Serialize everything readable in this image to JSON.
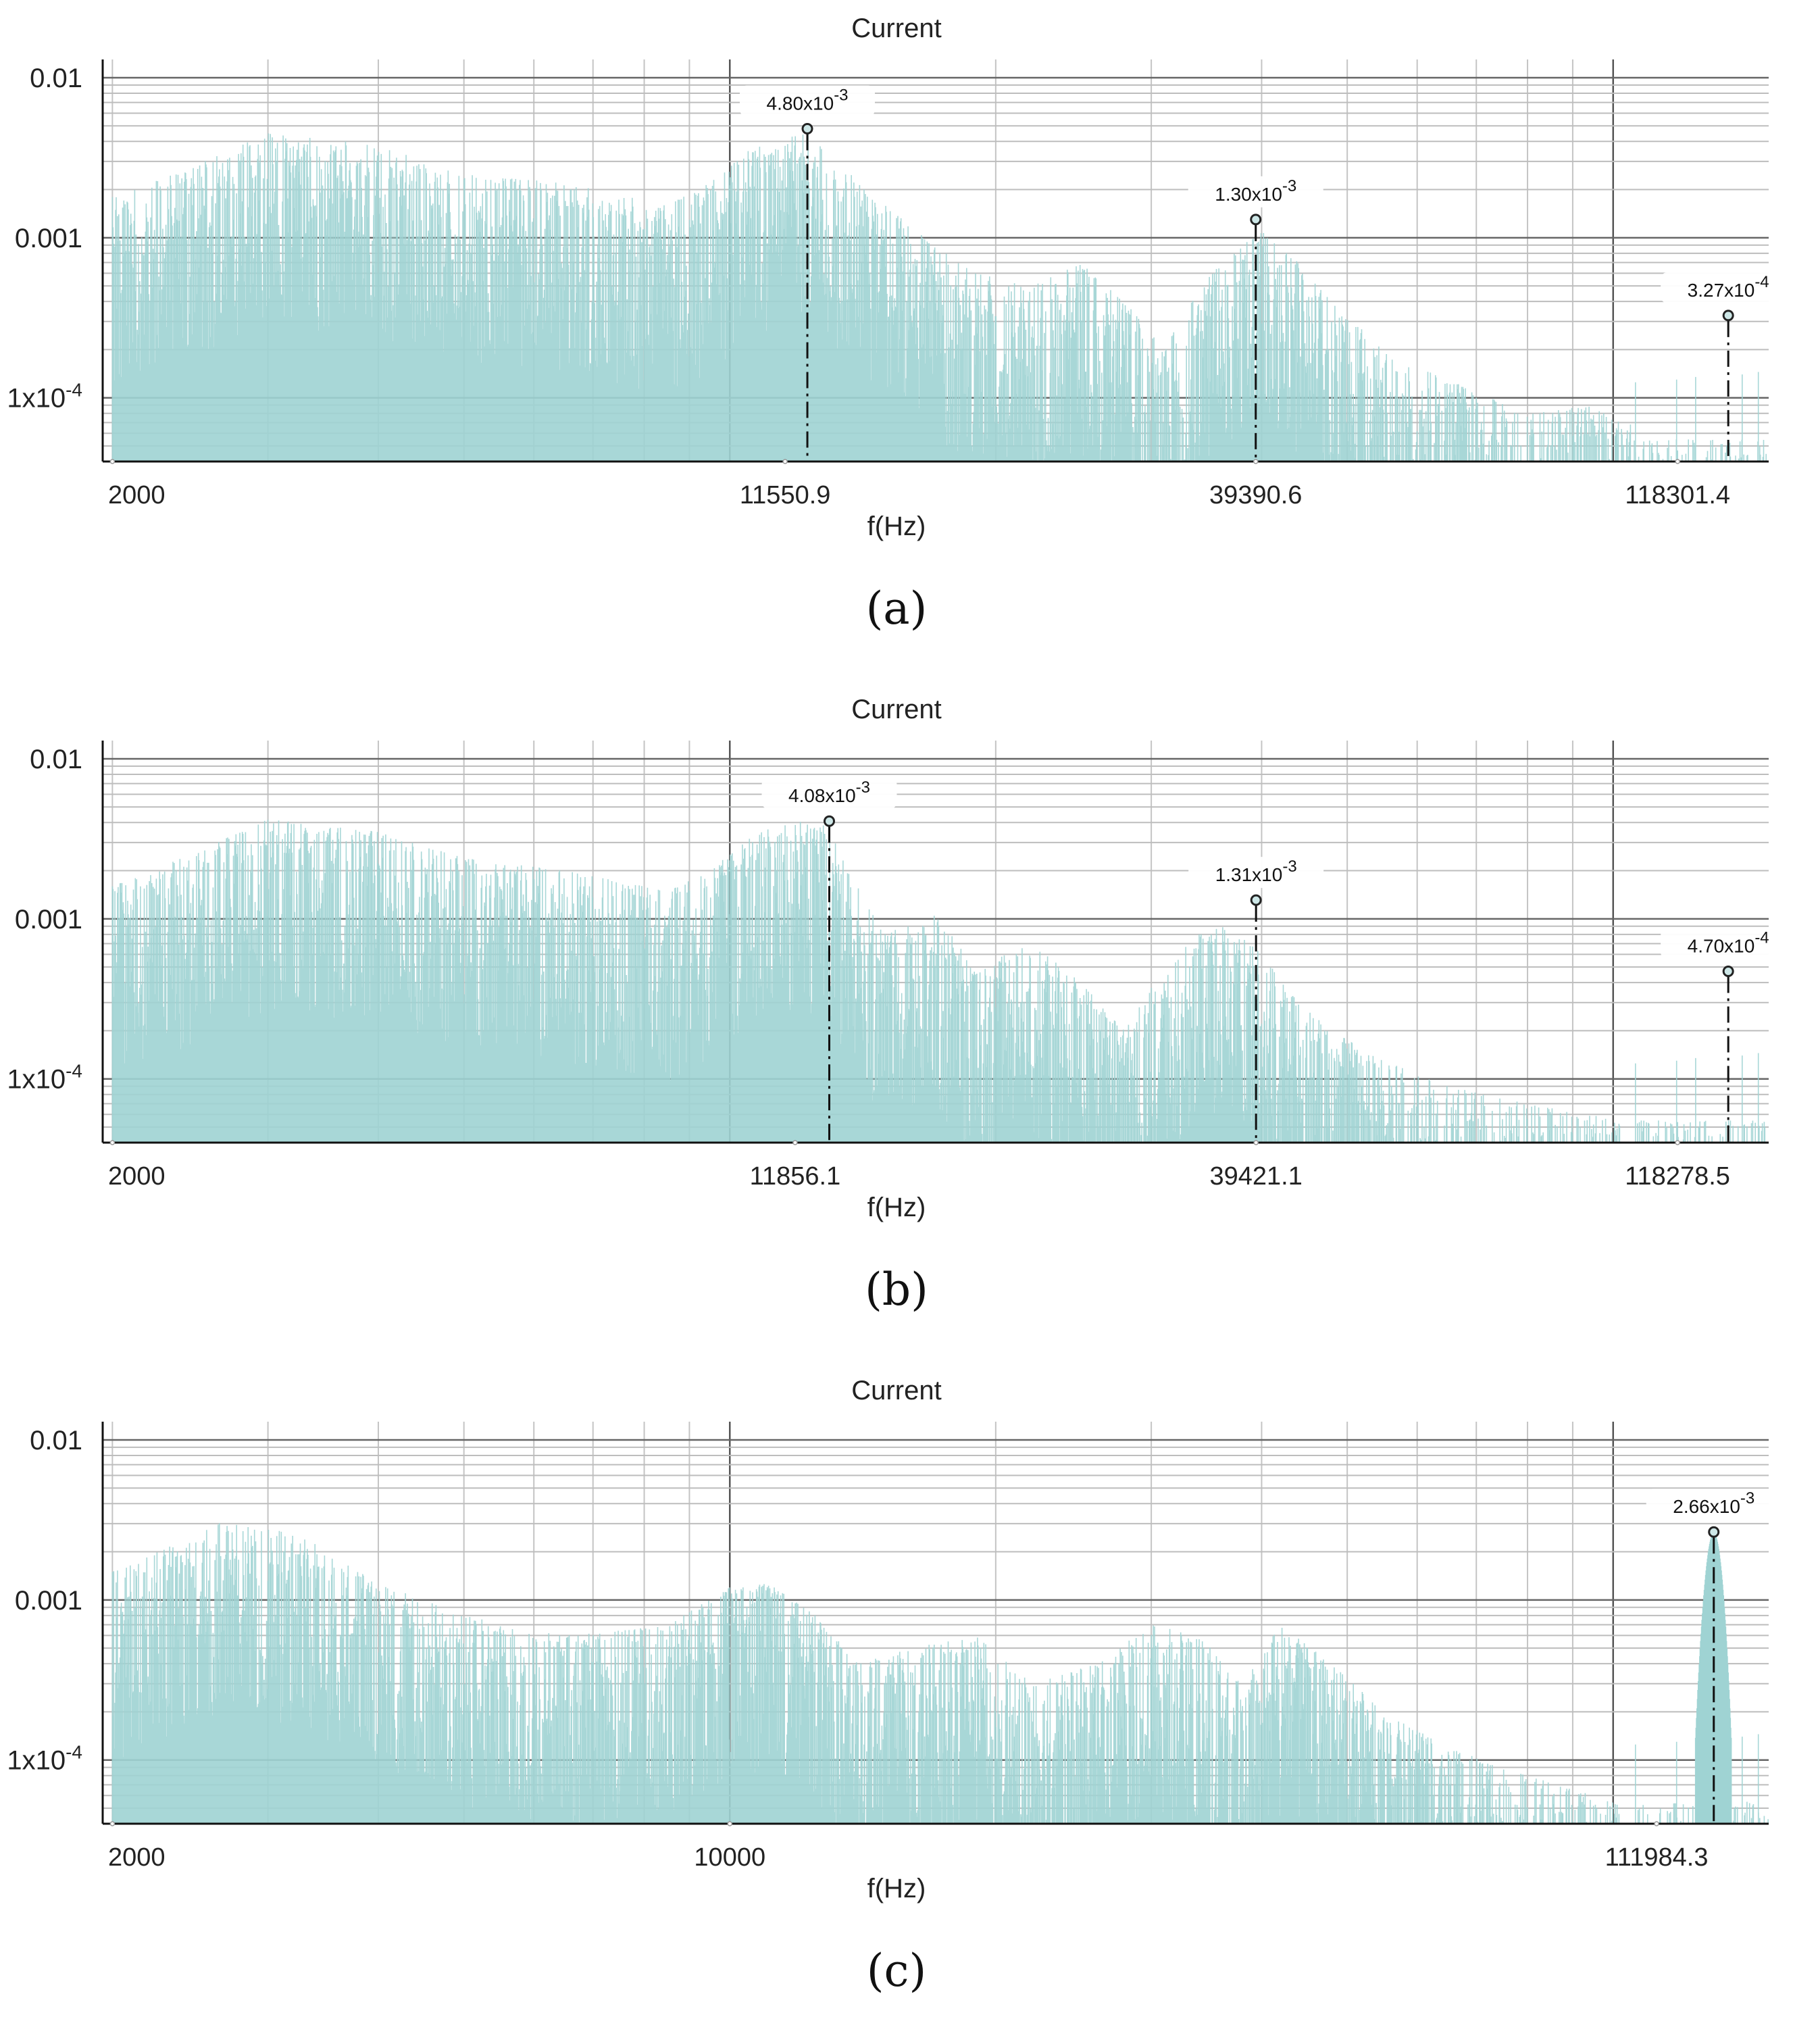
{
  "chart_data": [
    {
      "type": "line",
      "title": "Current",
      "xlabel": "f(Hz)",
      "ylabel": "",
      "caption": "(a)",
      "x_scale": "log",
      "y_scale": "log",
      "xlim": [
        1950,
        150000
      ],
      "ylim": [
        4e-05,
        0.013
      ],
      "grid": true,
      "series_color": "#9fd3d3",
      "ytick_labels": [
        "0.01",
        "0.001",
        "1x10-4"
      ],
      "ytick_values": [
        0.01,
        0.001,
        0.0001
      ],
      "xtick_labels": [
        "2000",
        "11550.9",
        "39390.6",
        "118301.4"
      ],
      "xtick_values": [
        2000,
        11550.9,
        39390.6,
        118301.4
      ],
      "envelope": {
        "f": [
          2000,
          2400,
          3000,
          4000,
          5000,
          6500,
          8500,
          9500,
          10500,
          11500,
          12300,
          13500,
          15000,
          17000,
          19000,
          22000,
          25000,
          28000,
          31000,
          34000,
          37000,
          40000,
          44000,
          48000,
          55000,
          65000,
          80000,
          95000,
          104000
        ],
        "amp": [
          0.0018,
          0.0026,
          0.0045,
          0.0038,
          0.0025,
          0.0022,
          0.0016,
          0.0022,
          0.0035,
          0.0045,
          0.0048,
          0.0028,
          0.0016,
          0.0009,
          0.0006,
          0.0005,
          0.0007,
          0.0004,
          0.0002,
          0.0005,
          0.0008,
          0.0011,
          0.0007,
          0.0004,
          0.0002,
          0.00013,
          8e-05,
          9e-05,
          7e-05
        ]
      },
      "markers": [
        {
          "x": 12240,
          "y": 0.0048,
          "label_base": "4.80x10",
          "label_exp": "-3"
        },
        {
          "x": 39390.6,
          "y": 0.0013,
          "label_base": "1.30x10",
          "label_exp": "-3"
        },
        {
          "x": 135000,
          "y": 0.000327,
          "label_base": "3.27x10",
          "label_exp": "-4"
        }
      ]
    },
    {
      "type": "line",
      "title": "Current",
      "xlabel": "f(Hz)",
      "ylabel": "",
      "caption": "(b)",
      "x_scale": "log",
      "y_scale": "log",
      "xlim": [
        1950,
        150000
      ],
      "ylim": [
        4e-05,
        0.013
      ],
      "grid": true,
      "series_color": "#9fd3d3",
      "ytick_labels": [
        "0.01",
        "0.001",
        "1x10-4"
      ],
      "ytick_values": [
        0.01,
        0.001,
        0.0001
      ],
      "xtick_labels": [
        "2000",
        "11856.1",
        "39421.1",
        "118278.5"
      ],
      "xtick_values": [
        2000,
        11856.1,
        39421.1,
        118278.5
      ],
      "envelope": {
        "f": [
          2000,
          2400,
          3000,
          4000,
          5000,
          6500,
          8500,
          9500,
          10500,
          11500,
          12300,
          12900,
          13500,
          15000,
          17000,
          19000,
          22000,
          25000,
          28000,
          31000,
          34000,
          37000,
          40000,
          44000,
          48000,
          55000,
          65000,
          80000,
          95000,
          104000
        ],
        "amp": [
          0.0016,
          0.0024,
          0.0042,
          0.0035,
          0.0024,
          0.002,
          0.0015,
          0.002,
          0.0032,
          0.004,
          0.0041,
          0.0038,
          0.0022,
          0.0008,
          0.0011,
          0.0005,
          0.0007,
          0.0004,
          0.0002,
          0.0005,
          0.0008,
          0.00095,
          0.0006,
          0.0003,
          0.0002,
          0.00013,
          9e-05,
          7e-05,
          6e-05,
          5e-05
        ]
      },
      "markers": [
        {
          "x": 12960,
          "y": 0.00408,
          "label_base": "4.08x10",
          "label_exp": "-3"
        },
        {
          "x": 39421.1,
          "y": 0.00131,
          "label_base": "1.31x10",
          "label_exp": "-3"
        },
        {
          "x": 135000,
          "y": 0.00047,
          "label_base": "4.70x10",
          "label_exp": "-4"
        }
      ]
    },
    {
      "type": "line",
      "title": "Current",
      "xlabel": "f(Hz)",
      "ylabel": "",
      "caption": "(c)",
      "x_scale": "log",
      "y_scale": "log",
      "xlim": [
        1950,
        150000
      ],
      "ylim": [
        4e-05,
        0.013
      ],
      "grid": true,
      "series_color": "#9fd3d3",
      "ytick_labels": [
        "0.01",
        "0.001",
        "1x10-4"
      ],
      "ytick_values": [
        0.01,
        0.001,
        0.0001
      ],
      "xtick_labels": [
        "2000",
        "10000",
        "111984.3"
      ],
      "xtick_values": [
        2000,
        10000,
        111984.3
      ],
      "envelope": {
        "f": [
          2000,
          2300,
          2700,
          3300,
          4000,
          5000,
          6500,
          8500,
          10000,
          11000,
          12500,
          14000,
          16000,
          19000,
          22000,
          26000,
          30000,
          34000,
          38000,
          42000,
          48000,
          55000,
          65000,
          80000,
          95000,
          104000
        ],
        "amp": [
          0.0015,
          0.0021,
          0.0032,
          0.0025,
          0.0013,
          0.0008,
          0.0006,
          0.0007,
          0.0012,
          0.0013,
          0.0008,
          0.0004,
          0.0005,
          0.0006,
          0.0003,
          0.0004,
          0.0007,
          0.0006,
          0.0003,
          0.0007,
          0.0004,
          0.0002,
          0.00012,
          8e-05,
          6e-05,
          5e-05
        ]
      },
      "markers": [
        {
          "x": 130000,
          "y": 0.00266,
          "label_base": "2.66x10",
          "label_exp": "-3"
        }
      ]
    }
  ]
}
